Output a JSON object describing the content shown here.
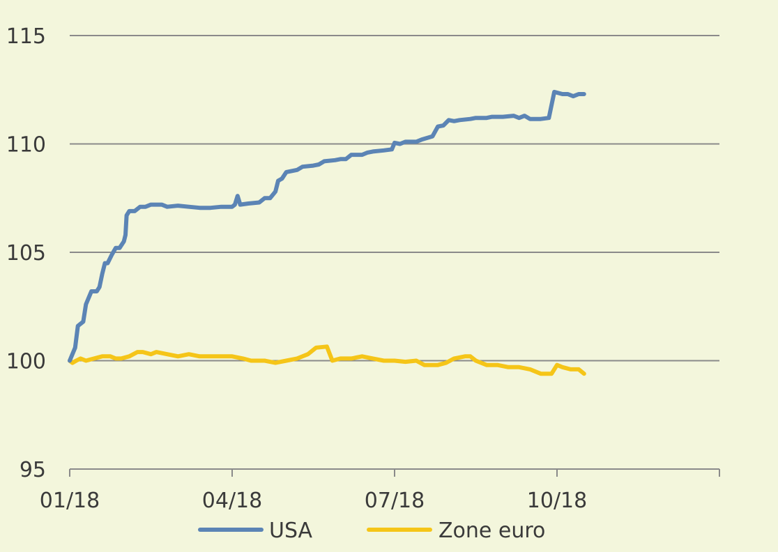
{
  "chart_data": {
    "type": "line",
    "title": "",
    "xlabel": "",
    "ylabel": "",
    "ylim": [
      95,
      115
    ],
    "yticks": [
      95,
      100,
      105,
      110,
      115
    ],
    "xlim": [
      0,
      12
    ],
    "xticks": [
      {
        "month": 0,
        "label": "01/18"
      },
      {
        "month": 3,
        "label": "04/18"
      },
      {
        "month": 6,
        "label": "07/18"
      },
      {
        "month": 9,
        "label": "10/18"
      },
      {
        "month": 12,
        "label": ""
      }
    ],
    "grid": true,
    "legend": "bottom",
    "series": [
      {
        "name": "USA",
        "color": "#5b84b5",
        "points": [
          [
            0.0,
            100.0
          ],
          [
            0.1,
            100.6
          ],
          [
            0.15,
            101.6
          ],
          [
            0.25,
            101.8
          ],
          [
            0.3,
            102.6
          ],
          [
            0.35,
            102.9
          ],
          [
            0.4,
            103.2
          ],
          [
            0.5,
            103.2
          ],
          [
            0.55,
            103.4
          ],
          [
            0.6,
            104.0
          ],
          [
            0.65,
            104.5
          ],
          [
            0.7,
            104.5
          ],
          [
            0.78,
            104.9
          ],
          [
            0.85,
            105.2
          ],
          [
            0.92,
            105.2
          ],
          [
            1.0,
            105.5
          ],
          [
            1.03,
            105.8
          ],
          [
            1.05,
            106.7
          ],
          [
            1.1,
            106.9
          ],
          [
            1.2,
            106.9
          ],
          [
            1.3,
            107.1
          ],
          [
            1.4,
            107.1
          ],
          [
            1.5,
            107.2
          ],
          [
            1.7,
            107.2
          ],
          [
            1.8,
            107.1
          ],
          [
            2.0,
            107.15
          ],
          [
            2.2,
            107.1
          ],
          [
            2.4,
            107.05
          ],
          [
            2.6,
            107.05
          ],
          [
            2.8,
            107.1
          ],
          [
            3.0,
            107.1
          ],
          [
            3.05,
            107.2
          ],
          [
            3.1,
            107.6
          ],
          [
            3.15,
            107.2
          ],
          [
            3.3,
            107.25
          ],
          [
            3.5,
            107.3
          ],
          [
            3.6,
            107.5
          ],
          [
            3.7,
            107.5
          ],
          [
            3.8,
            107.8
          ],
          [
            3.85,
            108.3
          ],
          [
            3.92,
            108.4
          ],
          [
            4.0,
            108.7
          ],
          [
            4.2,
            108.8
          ],
          [
            4.3,
            108.95
          ],
          [
            4.5,
            109.0
          ],
          [
            4.6,
            109.05
          ],
          [
            4.7,
            109.2
          ],
          [
            4.9,
            109.25
          ],
          [
            5.0,
            109.3
          ],
          [
            5.1,
            109.3
          ],
          [
            5.2,
            109.5
          ],
          [
            5.4,
            109.5
          ],
          [
            5.5,
            109.6
          ],
          [
            5.6,
            109.65
          ],
          [
            5.8,
            109.7
          ],
          [
            5.95,
            109.75
          ],
          [
            6.0,
            110.05
          ],
          [
            6.1,
            110.0
          ],
          [
            6.2,
            110.1
          ],
          [
            6.4,
            110.1
          ],
          [
            6.5,
            110.2
          ],
          [
            6.7,
            110.35
          ],
          [
            6.8,
            110.8
          ],
          [
            6.9,
            110.85
          ],
          [
            7.0,
            111.1
          ],
          [
            7.1,
            111.05
          ],
          [
            7.2,
            111.1
          ],
          [
            7.4,
            111.15
          ],
          [
            7.5,
            111.2
          ],
          [
            7.7,
            111.2
          ],
          [
            7.8,
            111.25
          ],
          [
            8.0,
            111.25
          ],
          [
            8.2,
            111.3
          ],
          [
            8.3,
            111.2
          ],
          [
            8.4,
            111.3
          ],
          [
            8.5,
            111.15
          ],
          [
            8.7,
            111.15
          ],
          [
            8.85,
            111.2
          ],
          [
            8.95,
            112.4
          ],
          [
            9.1,
            112.3
          ],
          [
            9.2,
            112.3
          ],
          [
            9.3,
            112.2
          ],
          [
            9.4,
            112.3
          ],
          [
            9.5,
            112.3
          ]
        ]
      },
      {
        "name": "Zone euro",
        "color": "#f5c518",
        "points": [
          [
            0.0,
            100.0
          ],
          [
            0.05,
            99.9
          ],
          [
            0.12,
            100.0
          ],
          [
            0.2,
            100.1
          ],
          [
            0.3,
            100.0
          ],
          [
            0.45,
            100.1
          ],
          [
            0.6,
            100.2
          ],
          [
            0.75,
            100.2
          ],
          [
            0.85,
            100.1
          ],
          [
            0.95,
            100.1
          ],
          [
            1.1,
            100.2
          ],
          [
            1.25,
            100.4
          ],
          [
            1.35,
            100.4
          ],
          [
            1.5,
            100.3
          ],
          [
            1.6,
            100.4
          ],
          [
            1.8,
            100.3
          ],
          [
            2.0,
            100.2
          ],
          [
            2.2,
            100.3
          ],
          [
            2.4,
            100.2
          ],
          [
            2.6,
            100.2
          ],
          [
            2.8,
            100.2
          ],
          [
            3.0,
            100.2
          ],
          [
            3.2,
            100.1
          ],
          [
            3.35,
            100.0
          ],
          [
            3.6,
            100.0
          ],
          [
            3.8,
            99.9
          ],
          [
            4.0,
            100.0
          ],
          [
            4.2,
            100.1
          ],
          [
            4.4,
            100.3
          ],
          [
            4.55,
            100.6
          ],
          [
            4.75,
            100.65
          ],
          [
            4.85,
            100.0
          ],
          [
            5.0,
            100.1
          ],
          [
            5.2,
            100.1
          ],
          [
            5.4,
            100.2
          ],
          [
            5.6,
            100.1
          ],
          [
            5.8,
            100.0
          ],
          [
            6.0,
            100.0
          ],
          [
            6.2,
            99.95
          ],
          [
            6.4,
            100.0
          ],
          [
            6.55,
            99.8
          ],
          [
            6.8,
            99.8
          ],
          [
            6.95,
            99.9
          ],
          [
            7.1,
            100.1
          ],
          [
            7.3,
            100.2
          ],
          [
            7.4,
            100.2
          ],
          [
            7.5,
            100.0
          ],
          [
            7.7,
            99.8
          ],
          [
            7.9,
            99.8
          ],
          [
            8.1,
            99.7
          ],
          [
            8.3,
            99.7
          ],
          [
            8.5,
            99.6
          ],
          [
            8.7,
            99.4
          ],
          [
            8.9,
            99.4
          ],
          [
            9.0,
            99.8
          ],
          [
            9.1,
            99.7
          ],
          [
            9.25,
            99.6
          ],
          [
            9.4,
            99.6
          ],
          [
            9.5,
            99.4
          ]
        ]
      }
    ]
  }
}
